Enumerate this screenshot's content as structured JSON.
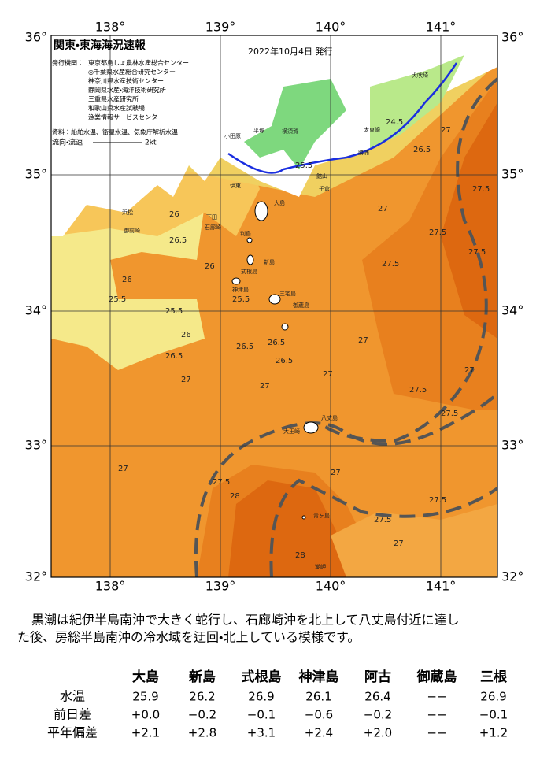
{
  "map": {
    "title": "関東・東海海況速報",
    "date": "2022年10月4日 発行",
    "publisher_label": "発行機関：",
    "publishers": [
      "東京都島しょ農林水産総合センター",
      "◎千葉県水産総合研究センター",
      "神奈川県水産技術センター",
      "静岡県水産・海洋技術研究所",
      "三重県水産研究所",
      "和歌山県水産試験場",
      "漁業情報サービスセンター"
    ],
    "source": "資料：船舶水温、衛星水温、気象庁解析水温",
    "legend": {
      "label": "流向・流速",
      "speed": "2kt"
    },
    "lon_labels": [
      "138°",
      "139°",
      "140°",
      "141°"
    ],
    "lat_labels": [
      "36°",
      "35°",
      "34°",
      "33°",
      "32°"
    ],
    "place_labels": [
      "大島",
      "利島",
      "新島",
      "式根島",
      "神津島",
      "三宅島",
      "御蔵島",
      "八丈島",
      "青ヶ島",
      "小田原",
      "平塚",
      "横須賀",
      "館山",
      "千倉",
      "勝浦",
      "太東崎",
      "犬吠埼",
      "伊東",
      "下田",
      "石廊崎",
      "御前崎",
      "浜松",
      "大王崎",
      "潮岬"
    ],
    "contour_labels": [
      "26",
      "26.5",
      "26",
      "25.5",
      "25.5",
      "26",
      "25.5",
      "26.5",
      "26",
      "26.5",
      "27",
      "27",
      "26.5",
      "26.5",
      "27",
      "27",
      "27.5",
      "27.5",
      "27.5",
      "27",
      "27",
      "27.5",
      "27.5",
      "27.5",
      "27",
      "27.5",
      "28",
      "28",
      "27.5",
      "27.5",
      "27",
      "27",
      "24.5",
      "26.5",
      "25.5",
      "27"
    ]
  },
  "description": [
    "黒潮は紀伊半島南沖で大きく蛇行し、石廊崎沖を北上して八丈島付近に達し",
    "た後、房総半島南沖の冷水域を迂回・北上している模様です。"
  ],
  "table": {
    "columns": [
      "大島",
      "新島",
      "式根島",
      "神津島",
      "阿古",
      "御蔵島",
      "三根"
    ],
    "rows": [
      {
        "label": "水温",
        "cells": [
          "25.9",
          "26.2",
          "26.9",
          "26.1",
          "26.4",
          "−−",
          "26.9"
        ]
      },
      {
        "label": "前日差",
        "cells": [
          "+0.0",
          "−0.2",
          "−0.1",
          "−0.6",
          "−0.2",
          "−−",
          "−0.1"
        ]
      },
      {
        "label": "平年偏差",
        "cells": [
          "+2.1",
          "+2.8",
          "+3.1",
          "+2.4",
          "+2.0",
          "−−",
          "+1.2"
        ]
      }
    ]
  }
}
